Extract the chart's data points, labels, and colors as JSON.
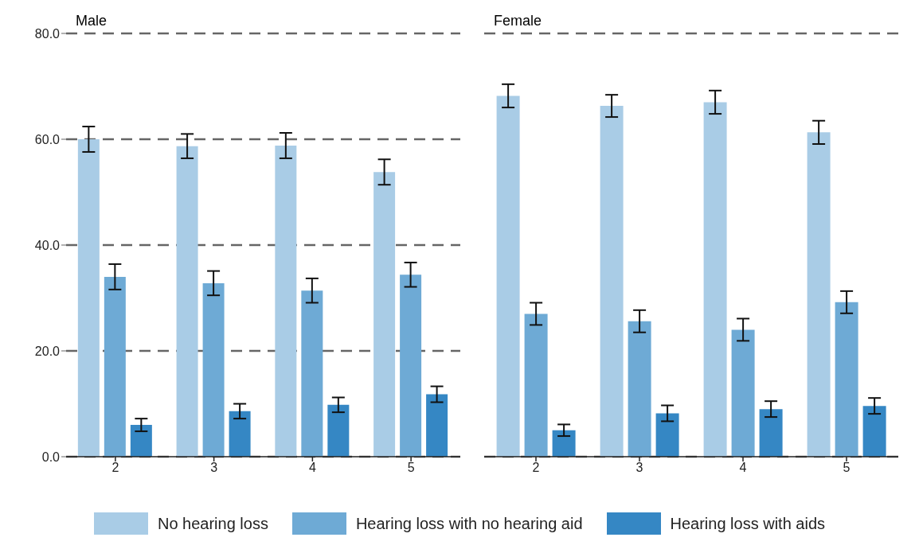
{
  "chart_data": [
    {
      "type": "bar",
      "title": "Male",
      "categories": [
        "2",
        "3",
        "4",
        "5"
      ],
      "series": [
        {
          "name": "No hearing loss",
          "color": "#a9cce6",
          "values": [
            60.0,
            58.7,
            58.8,
            53.8
          ],
          "errors": [
            2.4,
            2.3,
            2.4,
            2.4
          ]
        },
        {
          "name": "Hearing loss with no hearing aid",
          "color": "#6eaad5",
          "values": [
            34.0,
            32.8,
            31.4,
            34.4
          ],
          "errors": [
            2.4,
            2.3,
            2.3,
            2.3
          ]
        },
        {
          "name": "Hearing loss with aids",
          "color": "#3587c4",
          "values": [
            6.0,
            8.6,
            9.8,
            11.8
          ],
          "errors": [
            1.2,
            1.4,
            1.4,
            1.5
          ]
        }
      ],
      "ylim": [
        0,
        80
      ],
      "yticks": [
        {
          "value": 0,
          "label": "0.0"
        },
        {
          "value": 20,
          "label": "20.0"
        },
        {
          "value": 40,
          "label": "40.0"
        },
        {
          "value": 60,
          "label": "60.0"
        },
        {
          "value": 80,
          "label": "80.0"
        }
      ],
      "grid": "y",
      "legend": "bottom"
    },
    {
      "type": "bar",
      "title": "Female",
      "categories": [
        "2",
        "3",
        "4",
        "5"
      ],
      "series": [
        {
          "color": "#a9cce6",
          "values": [
            68.2,
            66.3,
            67.0,
            61.3
          ],
          "errors": [
            2.2,
            2.1,
            2.2,
            2.2
          ]
        },
        {
          "color": "#6eaad5",
          "values": [
            27.0,
            25.6,
            24.0,
            29.2
          ],
          "errors": [
            2.1,
            2.1,
            2.1,
            2.1
          ]
        },
        {
          "color": "#3587c4",
          "values": [
            5.0,
            8.2,
            9.0,
            9.6
          ],
          "errors": [
            1.1,
            1.5,
            1.5,
            1.5
          ]
        }
      ],
      "ylim": [
        0,
        80
      ],
      "yticks": [
        {
          "value": 0,
          "label": null
        },
        {
          "value": 20,
          "label": null
        },
        {
          "value": 40,
          "label": null
        },
        {
          "value": 60,
          "label": null
        },
        {
          "value": 80,
          "label": null
        }
      ],
      "grid": "y",
      "tick_labels": "x"
    }
  ]
}
